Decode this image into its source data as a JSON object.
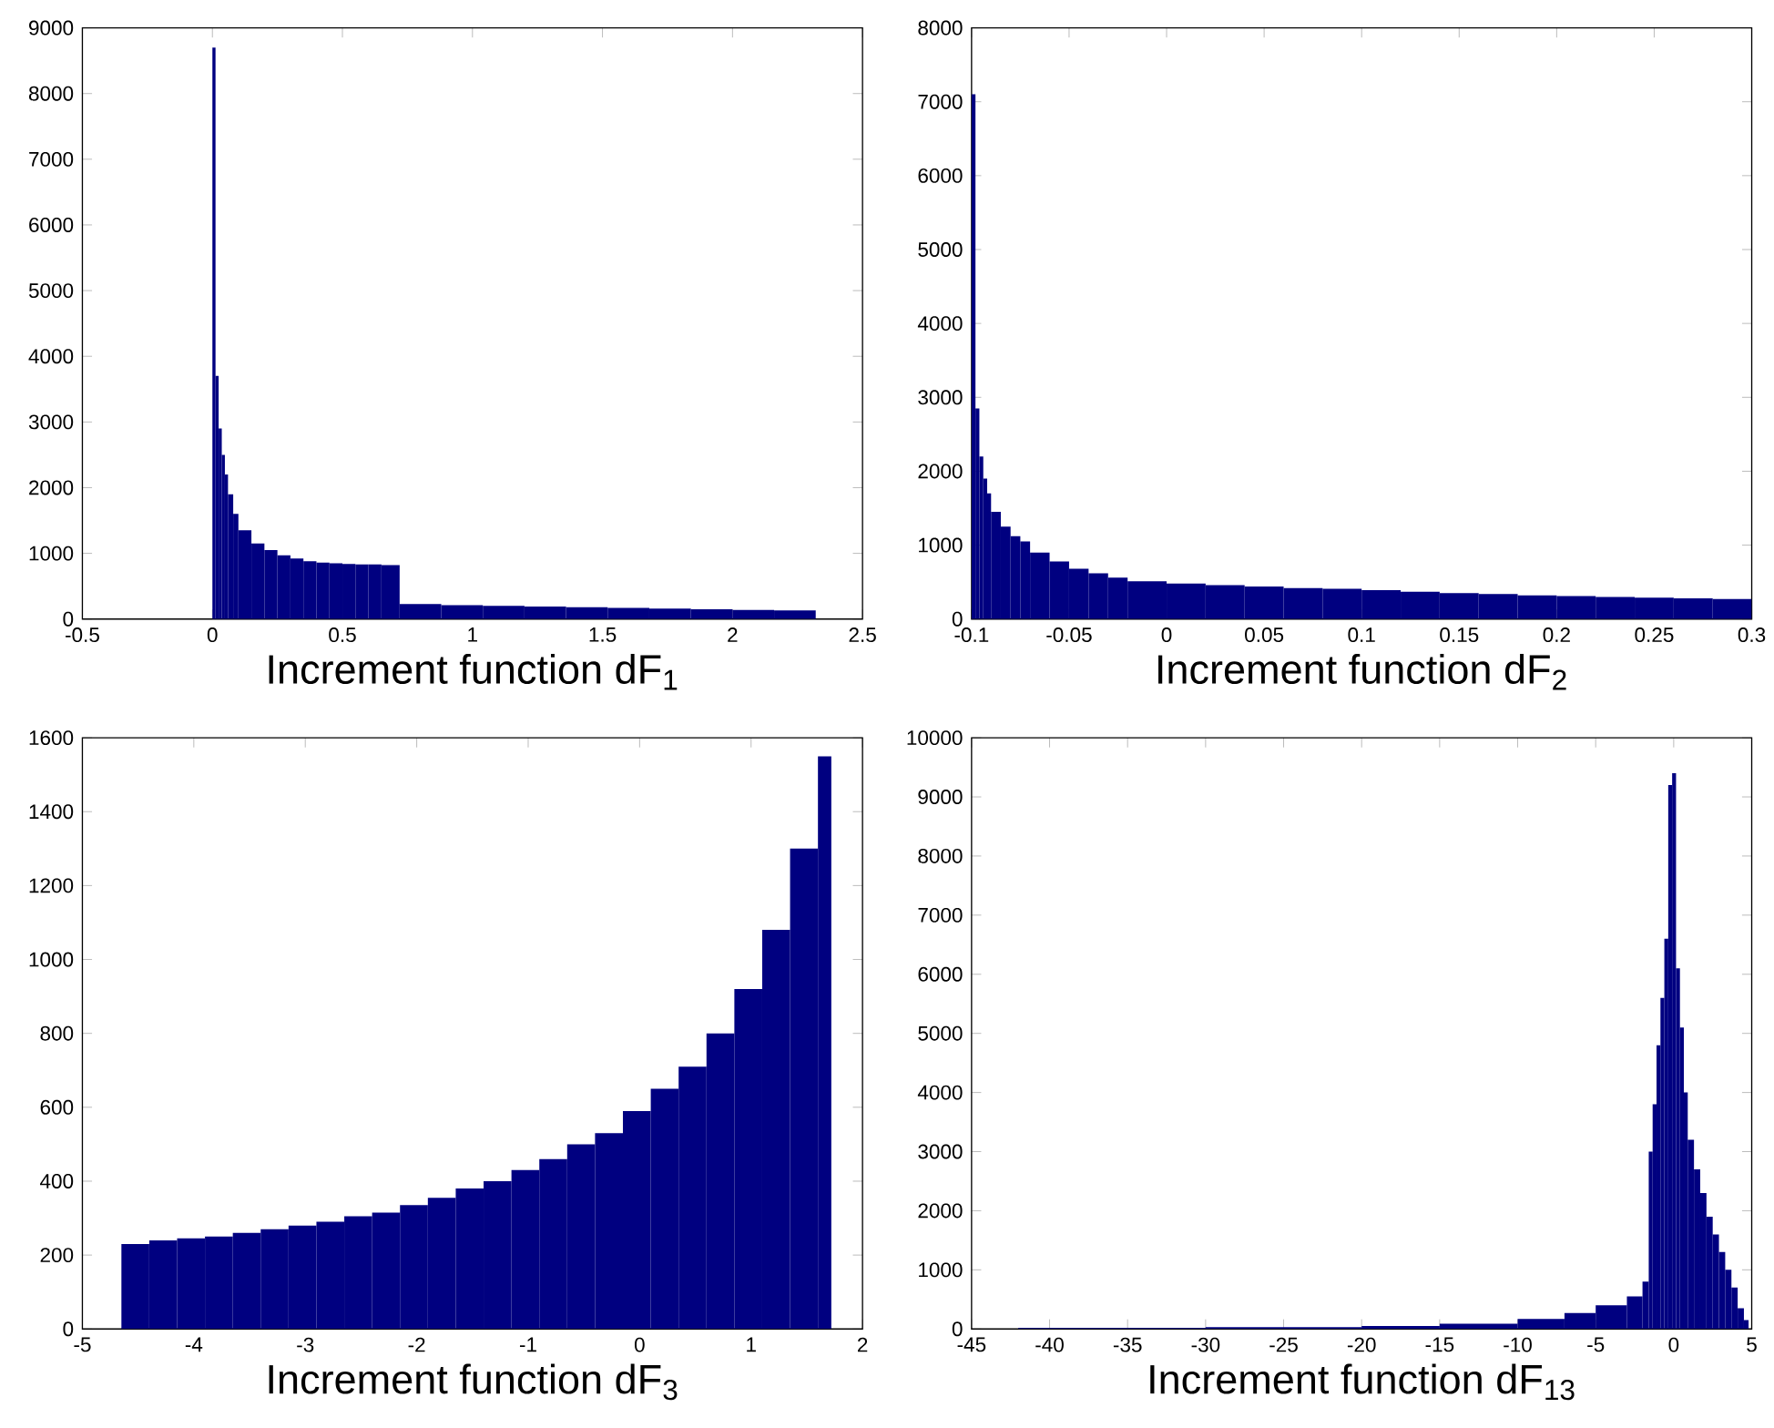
{
  "chart_data": [
    {
      "type": "histogram",
      "xlabel": "Increment function dF$_{1}$",
      "color": "#000080",
      "bins": [
        0,
        0.012,
        0.024,
        0.036,
        0.048,
        0.06,
        0.08,
        0.1,
        0.15,
        0.2,
        0.25,
        0.3,
        0.35,
        0.4,
        0.45,
        0.5,
        0.55,
        0.6,
        0.65,
        0.72,
        0.88,
        1.04,
        1.2,
        1.36,
        1.52,
        1.68,
        1.84,
        2.0,
        2.16,
        2.32
      ],
      "values": [
        8700,
        3700,
        2900,
        2500,
        2200,
        1900,
        1600,
        1350,
        1150,
        1050,
        970,
        920,
        880,
        860,
        850,
        840,
        830,
        830,
        820,
        230,
        210,
        200,
        190,
        180,
        170,
        160,
        150,
        140,
        130
      ],
      "xlim": [
        -0.5,
        2.5
      ],
      "xticks": [
        -0.5,
        0,
        0.5,
        1,
        1.5,
        2,
        2.5
      ],
      "ylim": [
        0,
        9000
      ],
      "yticks": [
        0,
        1000,
        2000,
        3000,
        4000,
        5000,
        6000,
        7000,
        8000,
        9000
      ]
    },
    {
      "type": "histogram",
      "xlabel": "Increment function dF$_{2}$",
      "color": "#000080",
      "bins": [
        -0.1,
        -0.098,
        -0.096,
        -0.094,
        -0.092,
        -0.09,
        -0.085,
        -0.08,
        -0.075,
        -0.07,
        -0.06,
        -0.05,
        -0.04,
        -0.03,
        -0.02,
        0,
        0.02,
        0.04,
        0.06,
        0.08,
        0.1,
        0.12,
        0.14,
        0.16,
        0.18,
        0.2,
        0.22,
        0.24,
        0.26,
        0.28,
        0.3
      ],
      "values": [
        7100,
        2850,
        2200,
        1900,
        1700,
        1450,
        1250,
        1120,
        1050,
        900,
        780,
        680,
        620,
        560,
        510,
        480,
        460,
        440,
        420,
        410,
        390,
        370,
        350,
        340,
        320,
        310,
        300,
        290,
        280,
        270
      ],
      "xlim": [
        -0.1,
        0.3
      ],
      "xticks": [
        -0.1,
        -0.05,
        0,
        0.05,
        0.1,
        0.15,
        0.2,
        0.25,
        0.3
      ],
      "ylim": [
        0,
        8000
      ],
      "yticks": [
        0,
        1000,
        2000,
        3000,
        4000,
        5000,
        6000,
        7000,
        8000
      ]
    },
    {
      "type": "histogram",
      "xlabel": "Increment function dF$_{3}$",
      "color": "#000080",
      "bins": [
        -4.65,
        -4.4,
        -4.15,
        -3.9,
        -3.65,
        -3.4,
        -3.15,
        -2.9,
        -2.65,
        -2.4,
        -2.15,
        -1.9,
        -1.65,
        -1.4,
        -1.15,
        -0.9,
        -0.65,
        -0.4,
        -0.15,
        0.1,
        0.35,
        0.6,
        0.85,
        1.1,
        1.35,
        1.6,
        1.72
      ],
      "values": [
        230,
        240,
        245,
        250,
        260,
        270,
        280,
        290,
        305,
        315,
        335,
        355,
        380,
        400,
        430,
        460,
        500,
        530,
        590,
        650,
        710,
        800,
        920,
        1080,
        1300,
        1550
      ],
      "xlim": [
        -5,
        2
      ],
      "xticks": [
        -5,
        -4,
        -3,
        -2,
        -1,
        0,
        1,
        2
      ],
      "ylim": [
        0,
        1600
      ],
      "yticks": [
        0,
        200,
        400,
        600,
        800,
        1000,
        1200,
        1400,
        1600
      ]
    },
    {
      "type": "histogram",
      "xlabel": "Increment function dF$_{13}$",
      "color": "#000080",
      "bins": [
        -42,
        -30,
        -20,
        -15,
        -10,
        -7,
        -5,
        -3,
        -2,
        -1.6,
        -1.35,
        -1.1,
        -0.85,
        -0.6,
        -0.35,
        -0.1,
        0.15,
        0.4,
        0.65,
        0.9,
        1.3,
        1.7,
        2.1,
        2.5,
        2.9,
        3.3,
        3.7,
        4.1,
        4.5,
        4.8
      ],
      "values": [
        20,
        30,
        50,
        90,
        170,
        270,
        400,
        550,
        800,
        3000,
        3800,
        4800,
        5600,
        6600,
        9200,
        9400,
        6100,
        5100,
        4000,
        3200,
        2700,
        2300,
        1900,
        1600,
        1300,
        1000,
        700,
        350,
        150
      ],
      "xlim": [
        -45,
        5
      ],
      "xticks": [
        -45,
        -40,
        -35,
        -30,
        -25,
        -20,
        -15,
        -10,
        -5,
        0,
        5
      ],
      "ylim": [
        0,
        10000
      ],
      "yticks": [
        0,
        1000,
        2000,
        3000,
        4000,
        5000,
        6000,
        7000,
        8000,
        9000,
        10000
      ]
    }
  ]
}
